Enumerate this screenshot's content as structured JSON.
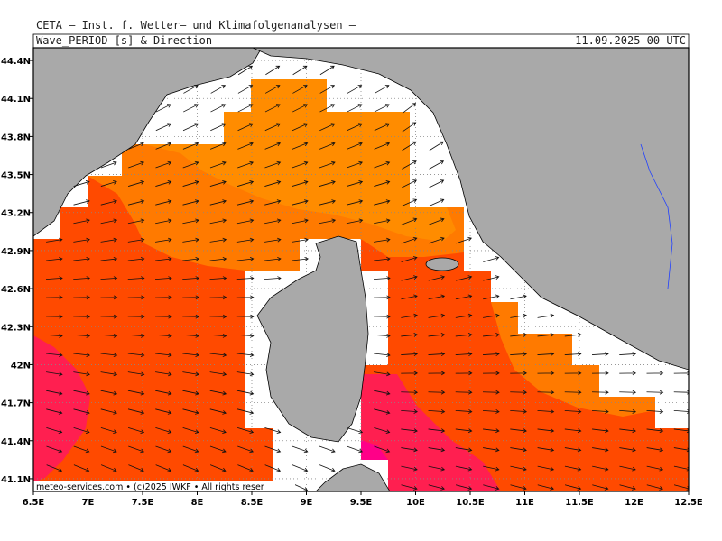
{
  "header": "CETA – Inst. f. Wetter– und Klimafolgenanalysen –",
  "title": "Wave_PERIOD [s] & Direction",
  "timestamp": "11.09.2025 00 UTC",
  "footer": "meteo-services.com • (c)2025 IWKF • All rights reser",
  "map": {
    "xlim": [
      6.5,
      12.5
    ],
    "ylim": [
      41.0,
      44.5
    ],
    "xticks": [
      {
        "value": 6.5,
        "label": "6.5E"
      },
      {
        "value": 7,
        "label": "7E"
      },
      {
        "value": 7.5,
        "label": "7.5E"
      },
      {
        "value": 8,
        "label": "8E"
      },
      {
        "value": 8.5,
        "label": "8.5E"
      },
      {
        "value": 9,
        "label": "9E"
      },
      {
        "value": 9.5,
        "label": "9.5E"
      },
      {
        "value": 10,
        "label": "10E"
      },
      {
        "value": 10.5,
        "label": "10.5E"
      },
      {
        "value": 11,
        "label": "11E"
      },
      {
        "value": 11.5,
        "label": "11.5E"
      },
      {
        "value": 12,
        "label": "12E"
      },
      {
        "value": 12.5,
        "label": "12.5E"
      }
    ],
    "yticks": [
      {
        "value": 41.1,
        "label": "41.1N"
      },
      {
        "value": 41.4,
        "label": "41.4N"
      },
      {
        "value": 41.7,
        "label": "41.7N"
      },
      {
        "value": 42,
        "label": "42N"
      },
      {
        "value": 42.3,
        "label": "42.3N"
      },
      {
        "value": 42.6,
        "label": "42.6N"
      },
      {
        "value": 42.9,
        "label": "42.9N"
      },
      {
        "value": 43.2,
        "label": "43.2N"
      },
      {
        "value": 43.5,
        "label": "43.5N"
      },
      {
        "value": 43.8,
        "label": "43.8N"
      },
      {
        "value": 44.1,
        "label": "44.1N"
      },
      {
        "value": 44.4,
        "label": "44.4N"
      }
    ],
    "grid": true
  }
}
